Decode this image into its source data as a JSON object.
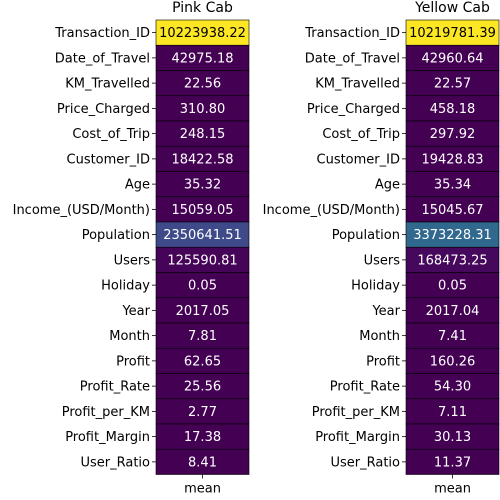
{
  "chart_data": [
    {
      "type": "heatmap",
      "title": "Pink Cab",
      "column": "mean",
      "rows": [
        {
          "label": "Transaction_ID",
          "display": "10223938.22",
          "value": 10223938.22,
          "color": "#fde725",
          "text_color": "#000000"
        },
        {
          "label": "Date_of_Travel",
          "display": "42975.18",
          "value": 42975.18,
          "color": "#440154",
          "text_color": "#ffffff"
        },
        {
          "label": "KM_Travelled",
          "display": "22.56",
          "value": 22.56,
          "color": "#440154",
          "text_color": "#ffffff"
        },
        {
          "label": "Price_Charged",
          "display": "310.80",
          "value": 310.8,
          "color": "#440154",
          "text_color": "#ffffff"
        },
        {
          "label": "Cost_of_Trip",
          "display": "248.15",
          "value": 248.15,
          "color": "#440154",
          "text_color": "#ffffff"
        },
        {
          "label": "Customer_ID",
          "display": "18422.58",
          "value": 18422.58,
          "color": "#440154",
          "text_color": "#ffffff"
        },
        {
          "label": "Age",
          "display": "35.32",
          "value": 35.32,
          "color": "#440154",
          "text_color": "#ffffff"
        },
        {
          "label": "Income_(USD/Month)",
          "display": "15059.05",
          "value": 15059.05,
          "color": "#440154",
          "text_color": "#ffffff"
        },
        {
          "label": "Population",
          "display": "2350641.51",
          "value": 2350641.51,
          "color": "#3e4a89",
          "text_color": "#ffffff"
        },
        {
          "label": "Users",
          "display": "125590.81",
          "value": 125590.81,
          "color": "#450457",
          "text_color": "#ffffff"
        },
        {
          "label": "Holiday",
          "display": "0.05",
          "value": 0.05,
          "color": "#440154",
          "text_color": "#ffffff"
        },
        {
          "label": "Year",
          "display": "2017.05",
          "value": 2017.05,
          "color": "#440154",
          "text_color": "#ffffff"
        },
        {
          "label": "Month",
          "display": "7.81",
          "value": 7.81,
          "color": "#440154",
          "text_color": "#ffffff"
        },
        {
          "label": "Profit",
          "display": "62.65",
          "value": 62.65,
          "color": "#440154",
          "text_color": "#ffffff"
        },
        {
          "label": "Profit_Rate",
          "display": "25.56",
          "value": 25.56,
          "color": "#440154",
          "text_color": "#ffffff"
        },
        {
          "label": "Profit_per_KM",
          "display": "2.77",
          "value": 2.77,
          "color": "#440154",
          "text_color": "#ffffff"
        },
        {
          "label": "Profit_Margin",
          "display": "17.38",
          "value": 17.38,
          "color": "#440154",
          "text_color": "#ffffff"
        },
        {
          "label": "User_Ratio",
          "display": "8.41",
          "value": 8.41,
          "color": "#440154",
          "text_color": "#ffffff"
        }
      ]
    },
    {
      "type": "heatmap",
      "title": "Yellow Cab",
      "column": "mean",
      "rows": [
        {
          "label": "Transaction_ID",
          "display": "10219781.39",
          "value": 10219781.39,
          "color": "#fde725",
          "text_color": "#000000"
        },
        {
          "label": "Date_of_Travel",
          "display": "42960.64",
          "value": 42960.64,
          "color": "#440154",
          "text_color": "#ffffff"
        },
        {
          "label": "KM_Travelled",
          "display": "22.57",
          "value": 22.57,
          "color": "#440154",
          "text_color": "#ffffff"
        },
        {
          "label": "Price_Charged",
          "display": "458.18",
          "value": 458.18,
          "color": "#440154",
          "text_color": "#ffffff"
        },
        {
          "label": "Cost_of_Trip",
          "display": "297.92",
          "value": 297.92,
          "color": "#440154",
          "text_color": "#ffffff"
        },
        {
          "label": "Customer_ID",
          "display": "19428.83",
          "value": 19428.83,
          "color": "#440154",
          "text_color": "#ffffff"
        },
        {
          "label": "Age",
          "display": "35.34",
          "value": 35.34,
          "color": "#440154",
          "text_color": "#ffffff"
        },
        {
          "label": "Income_(USD/Month)",
          "display": "15045.67",
          "value": 15045.67,
          "color": "#440154",
          "text_color": "#ffffff"
        },
        {
          "label": "Population",
          "display": "3373228.31",
          "value": 3373228.31,
          "color": "#31688e",
          "text_color": "#ffffff"
        },
        {
          "label": "Users",
          "display": "168473.25",
          "value": 168473.25,
          "color": "#46085c",
          "text_color": "#ffffff"
        },
        {
          "label": "Holiday",
          "display": "0.05",
          "value": 0.05,
          "color": "#440154",
          "text_color": "#ffffff"
        },
        {
          "label": "Year",
          "display": "2017.04",
          "value": 2017.04,
          "color": "#440154",
          "text_color": "#ffffff"
        },
        {
          "label": "Month",
          "display": "7.41",
          "value": 7.41,
          "color": "#440154",
          "text_color": "#ffffff"
        },
        {
          "label": "Profit",
          "display": "160.26",
          "value": 160.26,
          "color": "#440154",
          "text_color": "#ffffff"
        },
        {
          "label": "Profit_Rate",
          "display": "54.30",
          "value": 54.3,
          "color": "#440154",
          "text_color": "#ffffff"
        },
        {
          "label": "Profit_per_KM",
          "display": "7.11",
          "value": 7.11,
          "color": "#440154",
          "text_color": "#ffffff"
        },
        {
          "label": "Profit_Margin",
          "display": "30.13",
          "value": 30.13,
          "color": "#440154",
          "text_color": "#ffffff"
        },
        {
          "label": "User_Ratio",
          "display": "11.37",
          "value": 11.37,
          "color": "#440154",
          "text_color": "#ffffff"
        }
      ]
    }
  ]
}
